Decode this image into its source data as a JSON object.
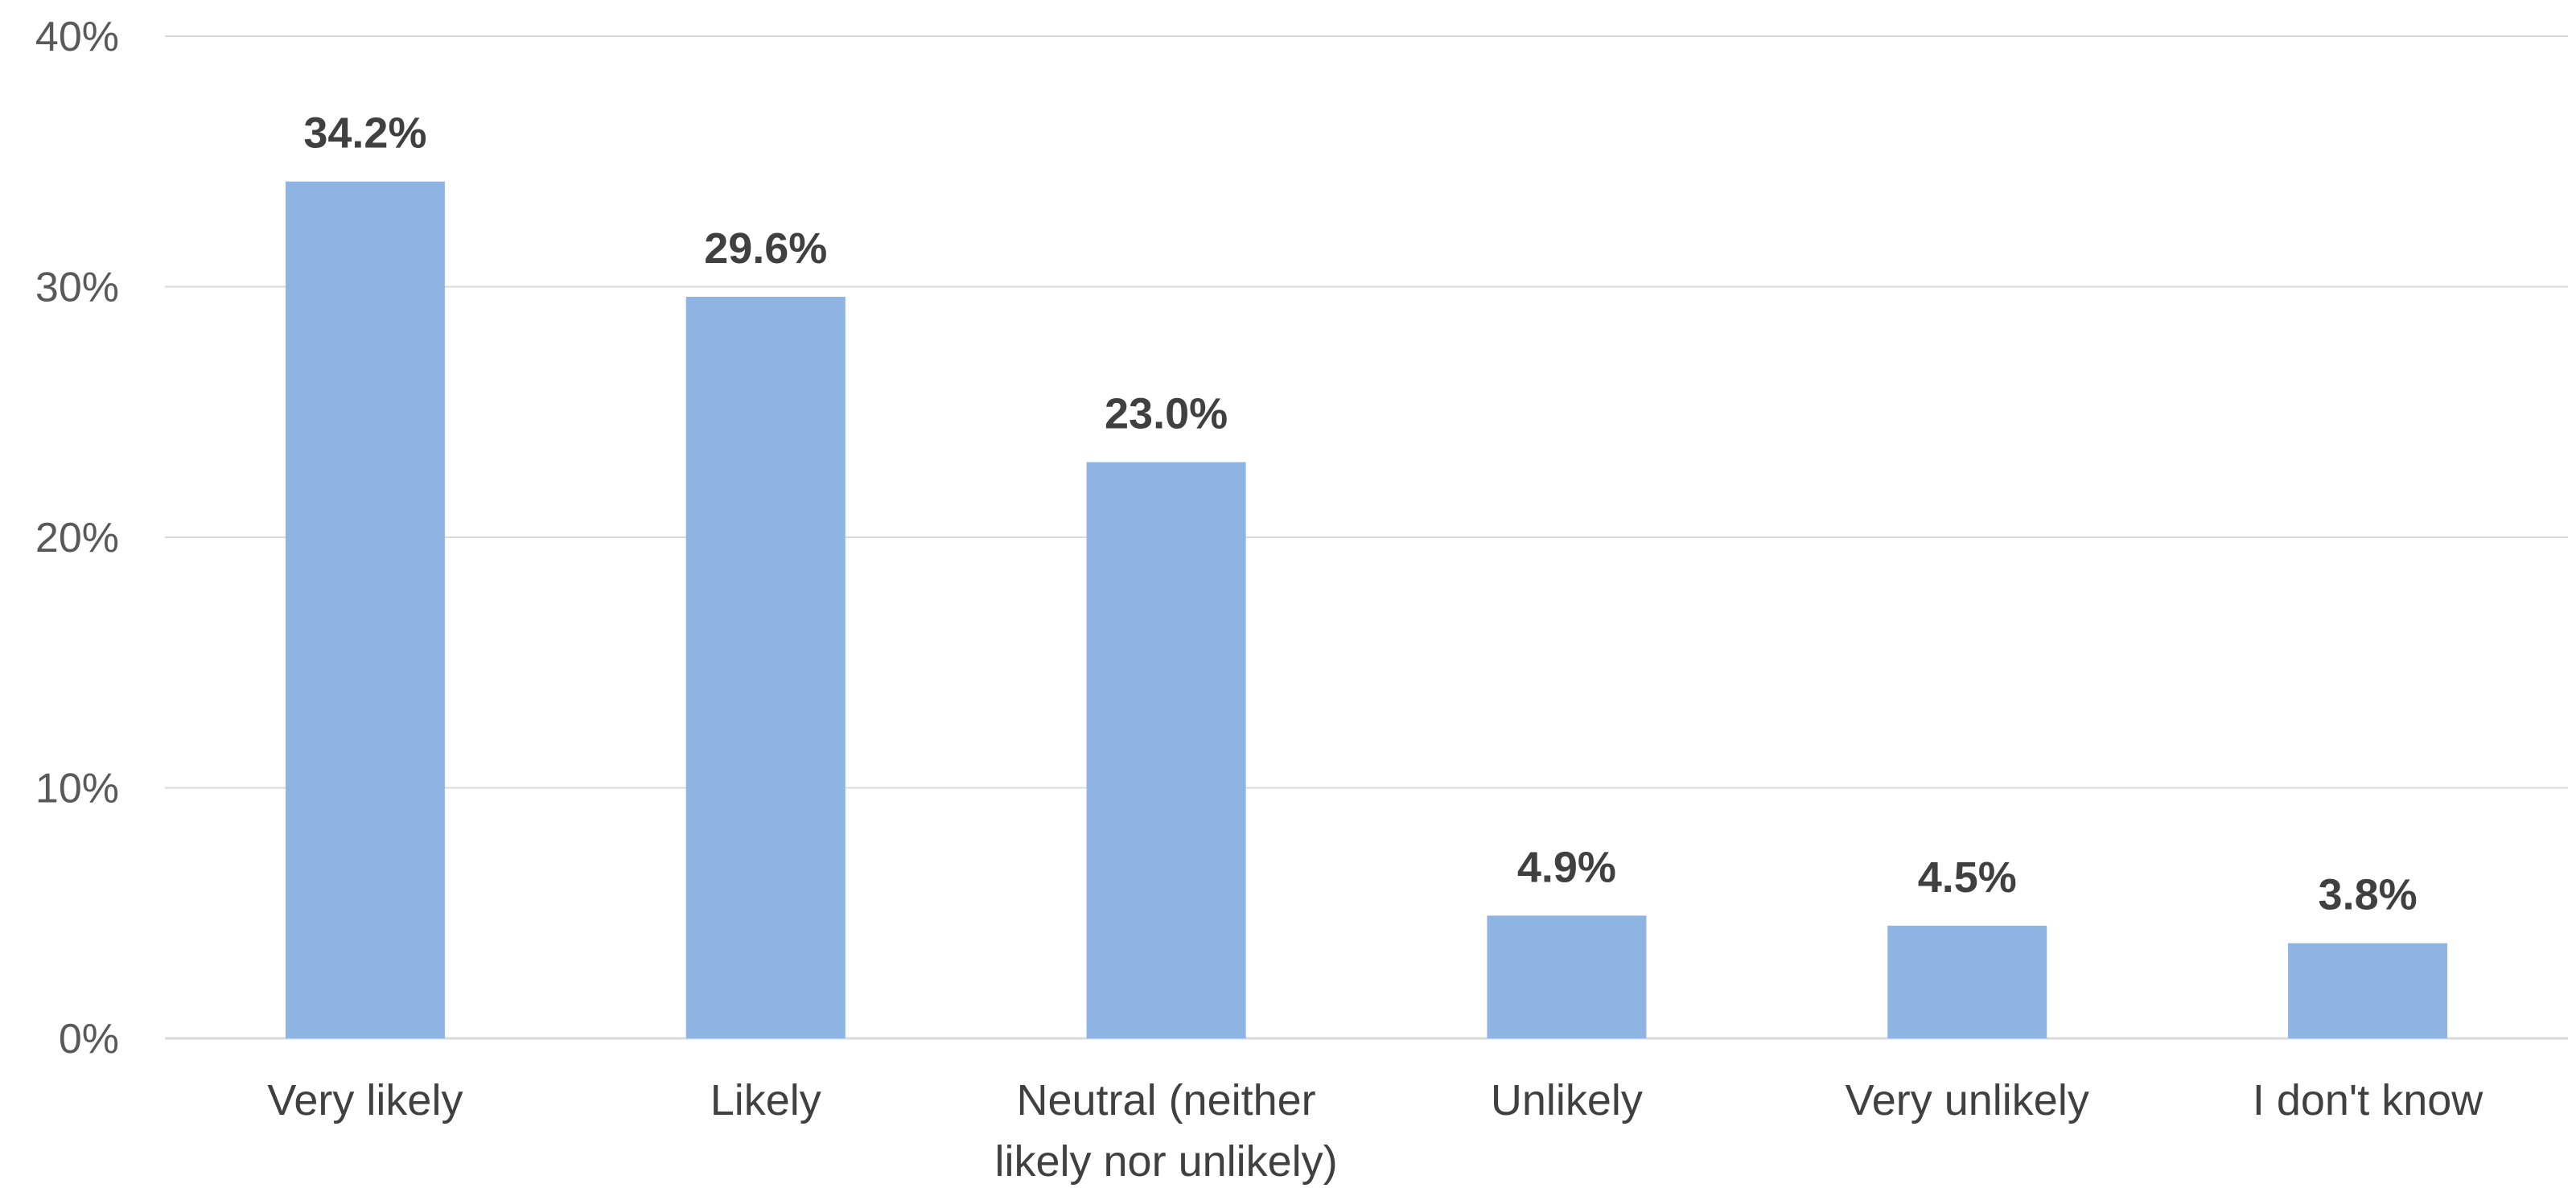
{
  "chart_data": {
    "type": "bar",
    "title": "",
    "xlabel": "",
    "ylabel": "",
    "categories": [
      [
        "Very likely"
      ],
      [
        "Likely"
      ],
      [
        "Neutral (neither",
        "likely nor unlikely)"
      ],
      [
        "Unlikely"
      ],
      [
        "Very unlikely"
      ],
      [
        "I don't know"
      ]
    ],
    "values": [
      34.2,
      29.6,
      23.0,
      4.9,
      4.5,
      3.8
    ],
    "data_labels": [
      "34.2%",
      "29.6%",
      "23.0%",
      "4.9%",
      "4.5%",
      "3.8%"
    ],
    "ylim": [
      0,
      40
    ],
    "yticks": [
      0,
      10,
      20,
      30,
      40
    ],
    "ytick_labels": [
      "0%",
      "10%",
      "20%",
      "30%",
      "40%"
    ],
    "grid": true,
    "legend": "none",
    "colors": {
      "bar": "#8eb4e3",
      "gridline": "#d9d9d9",
      "tick_text": "#595959",
      "label_text": "#404040"
    }
  }
}
